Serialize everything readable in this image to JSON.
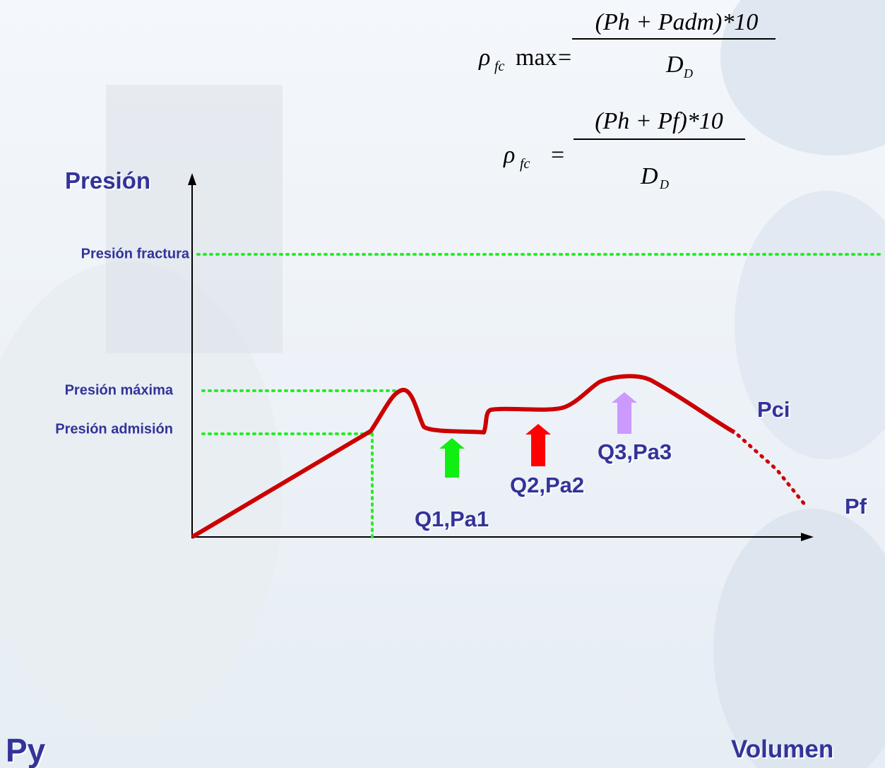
{
  "formulas": [
    {
      "symbol": "ρ",
      "symbol_sub": "fc",
      "suffix": "max",
      "equals": "=",
      "numerator": "(Ph + Padm)*10",
      "denominator": "D",
      "denominator_sub": "D"
    },
    {
      "symbol": "ρ",
      "symbol_sub": "fc",
      "equals": "=",
      "numerator": "(Ph + Pf)*10",
      "denominator": "D",
      "denominator_sub": "D"
    }
  ],
  "axes": {
    "y_label": "Presión",
    "x_label": "Volumen"
  },
  "levels": {
    "fractura": "Presión  fractura",
    "maxima": "Presión máxima",
    "admision": "Presión admisión"
  },
  "arrows": [
    {
      "label": "Q1,Pa1"
    },
    {
      "label": "Q2,Pa2"
    },
    {
      "label": "Q3,Pa3"
    }
  ],
  "points": {
    "pci": "Pci",
    "pf": "Pf"
  },
  "corner": "Py"
}
